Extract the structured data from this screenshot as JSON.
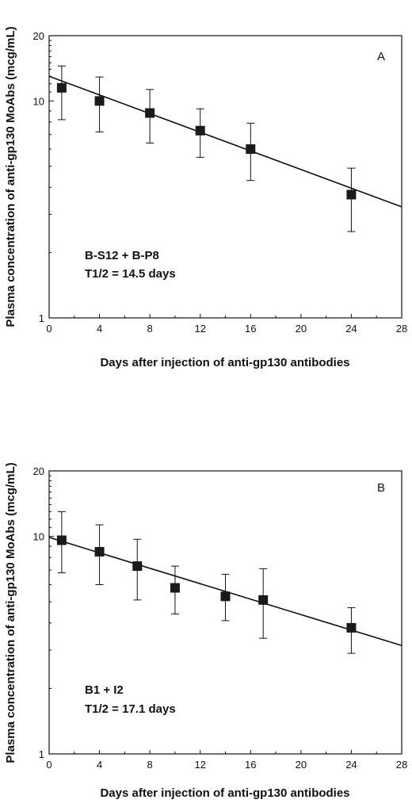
{
  "chart_data": [
    {
      "type": "scatter",
      "panel_label": "A",
      "xlabel": "Days after injection of anti-gp130 antibodies",
      "ylabel": "Plasma concentration of anti-gp130 MoAbs (mcg/mL)",
      "x_ticks": [
        0,
        4,
        8,
        12,
        16,
        20,
        24,
        28
      ],
      "y_ticks": [
        1,
        10,
        20
      ],
      "y_scale": "log",
      "xlim": [
        0,
        28
      ],
      "ylim": [
        1,
        20
      ],
      "grid": false,
      "annotation": [
        "B-S12 + B-P8",
        "T1/2 = 14.5 days"
      ],
      "points": [
        {
          "x": 1,
          "y": 11.5,
          "err_low": 8.2,
          "err_high": 14.5
        },
        {
          "x": 4,
          "y": 10.0,
          "err_low": 7.2,
          "err_high": 12.9
        },
        {
          "x": 8,
          "y": 8.8,
          "err_low": 6.4,
          "err_high": 11.3
        },
        {
          "x": 12,
          "y": 7.3,
          "err_low": 5.5,
          "err_high": 9.2
        },
        {
          "x": 16,
          "y": 6.0,
          "err_low": 4.3,
          "err_high": 7.9
        },
        {
          "x": 24,
          "y": 3.7,
          "err_low": 2.5,
          "err_high": 4.9
        }
      ],
      "fit_line": {
        "x": [
          0,
          28
        ],
        "y": [
          13.0,
          3.25
        ]
      }
    },
    {
      "type": "scatter",
      "panel_label": "B",
      "xlabel": "Days after injection of anti-gp130 antibodies",
      "ylabel": "Plasma concentration of anti-gp130 MoAbs (mcg/mL)",
      "x_ticks": [
        0,
        4,
        8,
        12,
        16,
        20,
        24,
        28
      ],
      "y_ticks": [
        1,
        10,
        20
      ],
      "y_scale": "log",
      "xlim": [
        0,
        28
      ],
      "ylim": [
        1,
        20
      ],
      "grid": false,
      "annotation": [
        "B1 + I2",
        "T1/2 = 17.1 days"
      ],
      "points": [
        {
          "x": 1,
          "y": 9.6,
          "err_low": 6.8,
          "err_high": 13.0
        },
        {
          "x": 4,
          "y": 8.5,
          "err_low": 6.0,
          "err_high": 11.3
        },
        {
          "x": 7,
          "y": 7.3,
          "err_low": 5.1,
          "err_high": 9.7
        },
        {
          "x": 10,
          "y": 5.8,
          "err_low": 4.4,
          "err_high": 7.3
        },
        {
          "x": 14,
          "y": 5.3,
          "err_low": 4.1,
          "err_high": 6.7
        },
        {
          "x": 17,
          "y": 5.1,
          "err_low": 3.4,
          "err_high": 7.1
        },
        {
          "x": 24,
          "y": 3.8,
          "err_low": 2.9,
          "err_high": 4.7
        }
      ],
      "fit_line": {
        "x": [
          0,
          28
        ],
        "y": [
          9.9,
          3.15
        ]
      }
    }
  ]
}
